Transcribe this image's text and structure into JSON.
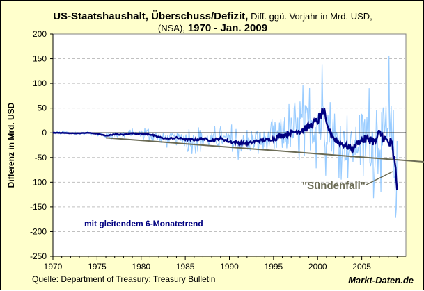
{
  "title": {
    "bold1": "US-Staatshaushalt, Überschuss/Defizit,",
    "normal1": "Diff. ggü. Vorjahr in Mrd. USD,",
    "normal2": "(NSA),",
    "bold2": "1970 -   Jan. 2009"
  },
  "source": "Quelle: Department of Treasury: Treasury Bulletin",
  "brand": "Markt-Daten.de",
  "colors": {
    "background": "#FFFFCC",
    "raw": "#99CCFF",
    "trend": "#000080",
    "trendline": "#6B6B55",
    "zero": "#000000"
  },
  "chart_data": {
    "type": "line",
    "ylabel": "Differenz in Mrd. USD",
    "xlabel": "",
    "xlim": [
      1970,
      2010
    ],
    "ylim": [
      -250,
      200
    ],
    "xticks": [
      "1970",
      "1975",
      "1980",
      "1985",
      "1990",
      "1995",
      "2000",
      "2005"
    ],
    "yticks": [
      "200",
      "150",
      "100",
      "50",
      "0",
      "-50",
      "-100",
      "-150",
      "-200",
      "-250"
    ],
    "grid": "horizontal dashed",
    "legend_text": "mit gleitendem 6-Monatetrend",
    "annotation": "\"Sündenfall\"",
    "series_trend_6m": {
      "x": [
        1970,
        1971,
        1972,
        1973,
        1974,
        1975,
        1976,
        1977,
        1978,
        1979,
        1980,
        1981,
        1982,
        1983,
        1984,
        1985,
        1986,
        1987,
        1988,
        1989,
        1990,
        1991,
        1992,
        1993,
        1994,
        1995,
        1996,
        1997,
        1998,
        1999,
        2000,
        2000.7,
        2001,
        2001.5,
        2002,
        2003,
        2004,
        2004.5,
        2005,
        2006,
        2006.5,
        2007,
        2007.5,
        2008,
        2008.4,
        2008.7,
        2009.0
      ],
      "y": [
        0,
        0,
        -1,
        -1,
        0,
        -2,
        -6,
        -3,
        -4,
        -1,
        -2,
        -3,
        -9,
        -12,
        -10,
        -13,
        -14,
        -12,
        -15,
        -11,
        -18,
        -20,
        -22,
        -17,
        -15,
        -12,
        -5,
        0,
        5,
        12,
        25,
        45,
        15,
        0,
        -15,
        -25,
        -32,
        -20,
        -15,
        -12,
        -20,
        0,
        -10,
        -20,
        -25,
        -60,
        -108
      ]
    },
    "series_raw_monthly_amplitude": {
      "years": [
        1970,
        1975,
        1980,
        1985,
        1990,
        1995,
        1998,
        2000,
        2001,
        2005,
        2008
      ],
      "amplitude": [
        5,
        10,
        20,
        30,
        40,
        70,
        100,
        130,
        75,
        120,
        200
      ]
    },
    "series_linear_trend": {
      "x": [
        1976,
        2010.2
      ],
      "y": [
        -10,
        -59
      ]
    }
  }
}
